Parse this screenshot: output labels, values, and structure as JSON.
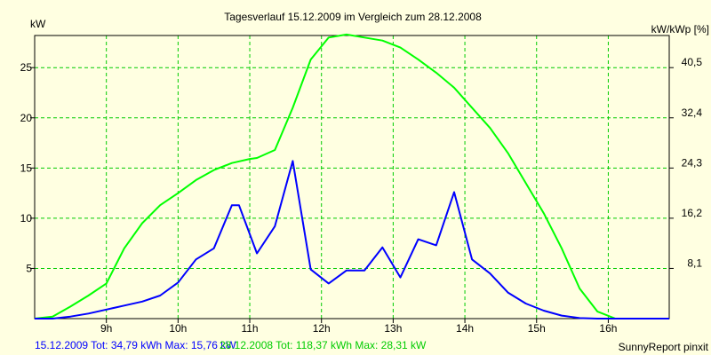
{
  "chart_data": {
    "type": "line",
    "title": "Tagesverlauf 15.12.2009 im Vergleich zum 28.12.2008",
    "ylabel_left": "kW",
    "ylabel_right": "kW/kWp [%]",
    "credit": "SunnyReport pinxit",
    "x_ticks": [
      9,
      10,
      11,
      12,
      13,
      14,
      15,
      16
    ],
    "x_tick_labels": [
      "9h",
      "10h",
      "11h",
      "12h",
      "13h",
      "14h",
      "15h",
      "16h"
    ],
    "xlim": [
      8.0,
      16.85
    ],
    "ylim": [
      0,
      28.2
    ],
    "y_ticks_left": [
      5,
      10,
      15,
      20,
      25
    ],
    "y_tick_labels_left": [
      "5",
      "10",
      "15",
      "20",
      "25"
    ],
    "y_ticks_right_kw": [
      5,
      10,
      15,
      20,
      25
    ],
    "y_tick_labels_right": [
      "8,1",
      "16,2",
      "24,3",
      "32,4",
      "40,5"
    ],
    "grid": true,
    "series": [
      {
        "name": "15.12.2009",
        "color": "#0000ff",
        "x": [
          8.0,
          8.25,
          8.5,
          8.75,
          9.0,
          9.25,
          9.5,
          9.75,
          10.0,
          10.25,
          10.5,
          10.75,
          10.85,
          11.1,
          11.35,
          11.6,
          11.85,
          12.1,
          12.35,
          12.6,
          12.85,
          13.1,
          13.35,
          13.6,
          13.85,
          14.1,
          14.35,
          14.6,
          14.85,
          15.1,
          15.35,
          15.6,
          15.85,
          16.1,
          16.35,
          16.85
        ],
        "y": [
          0,
          0,
          0.2,
          0.5,
          0.9,
          1.3,
          1.7,
          2.3,
          3.6,
          5.9,
          7.0,
          11.3,
          11.3,
          6.5,
          9.2,
          15.7,
          4.9,
          3.5,
          4.8,
          4.8,
          7.1,
          4.1,
          7.9,
          7.3,
          12.6,
          5.9,
          4.5,
          2.6,
          1.5,
          0.8,
          0.3,
          0.05,
          0,
          0,
          0,
          0
        ]
      },
      {
        "name": "28.12.2008",
        "color": "#00ff00",
        "x": [
          8.0,
          8.25,
          8.5,
          8.75,
          9.0,
          9.25,
          9.5,
          9.75,
          10.0,
          10.25,
          10.5,
          10.75,
          11.0,
          11.1,
          11.35,
          11.6,
          11.85,
          12.1,
          12.35,
          12.6,
          12.85,
          13.1,
          13.35,
          13.6,
          13.85,
          14.1,
          14.35,
          14.6,
          14.85,
          15.1,
          15.35,
          15.6,
          15.85,
          16.1,
          16.35,
          16.85
        ],
        "y": [
          0,
          0.2,
          1.2,
          2.3,
          3.5,
          7.0,
          9.5,
          11.3,
          12.5,
          13.8,
          14.8,
          15.5,
          15.9,
          16.0,
          16.8,
          21.0,
          25.8,
          28.0,
          28.3,
          28.0,
          27.7,
          27.0,
          25.8,
          24.5,
          23.0,
          21.0,
          19.0,
          16.5,
          13.5,
          10.5,
          7.0,
          3.0,
          0.7,
          0,
          0,
          0
        ]
      }
    ]
  },
  "footer": {
    "series1_text": "15.12.2009 Tot: 34,79 kWh Max: 15,76 kW",
    "series2_text": "28.12.2008 Tot: 118,37 kWh Max: 28,31 kW"
  }
}
